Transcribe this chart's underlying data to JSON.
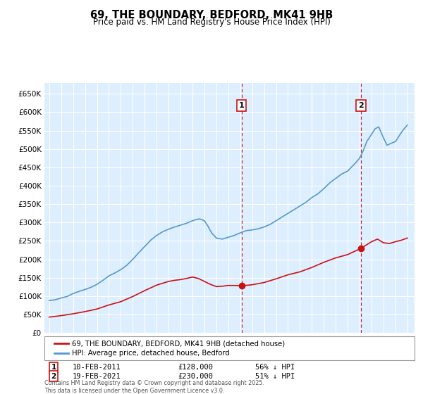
{
  "title": "69, THE BOUNDARY, BEDFORD, MK41 9HB",
  "subtitle": "Price paid vs. HM Land Registry's House Price Index (HPI)",
  "fig_bg_color": "#ffffff",
  "plot_bg_color": "#ddeeff",
  "grid_color": "#ffffff",
  "hpi_color": "#5599cc",
  "price_color": "#cc1111",
  "vline_color": "#cc1111",
  "ylim": [
    0,
    680000
  ],
  "yticks": [
    0,
    50000,
    100000,
    150000,
    200000,
    250000,
    300000,
    350000,
    400000,
    450000,
    500000,
    550000,
    600000,
    650000
  ],
  "legend_label_price": "69, THE BOUNDARY, BEDFORD, MK41 9HB (detached house)",
  "legend_label_hpi": "HPI: Average price, detached house, Bedford",
  "footnote": "Contains HM Land Registry data © Crown copyright and database right 2025.\nThis data is licensed under the Open Government Licence v3.0.",
  "transaction1_date": "10-FEB-2011",
  "transaction1_price": "£128,000",
  "transaction1_hpi": "56% ↓ HPI",
  "transaction1_year": 2011.12,
  "transaction1_price_val": 128000,
  "transaction2_date": "19-FEB-2021",
  "transaction2_price": "£230,000",
  "transaction2_hpi": "51% ↓ HPI",
  "transaction2_year": 2021.12,
  "transaction2_price_val": 230000,
  "hpi_x": [
    1995.0,
    1995.5,
    1996.0,
    1996.5,
    1997.0,
    1997.5,
    1998.0,
    1998.5,
    1999.0,
    1999.5,
    2000.0,
    2000.5,
    2001.0,
    2001.5,
    2002.0,
    2002.5,
    2003.0,
    2003.5,
    2004.0,
    2004.5,
    2005.0,
    2005.5,
    2006.0,
    2006.5,
    2007.0,
    2007.3,
    2007.6,
    2008.0,
    2008.3,
    2008.6,
    2009.0,
    2009.5,
    2010.0,
    2010.5,
    2011.0,
    2011.5,
    2012.0,
    2012.5,
    2013.0,
    2013.5,
    2014.0,
    2014.5,
    2015.0,
    2015.5,
    2016.0,
    2016.5,
    2017.0,
    2017.5,
    2018.0,
    2018.5,
    2019.0,
    2019.5,
    2020.0,
    2020.3,
    2020.6,
    2021.0,
    2021.3,
    2021.6,
    2022.0,
    2022.3,
    2022.6,
    2023.0,
    2023.3,
    2023.6,
    2024.0,
    2024.3,
    2024.6,
    2025.0
  ],
  "hpi_y": [
    88000,
    90000,
    95000,
    99000,
    107000,
    113000,
    118000,
    124000,
    132000,
    143000,
    155000,
    163000,
    172000,
    184000,
    200000,
    218000,
    235000,
    252000,
    265000,
    275000,
    282000,
    288000,
    293000,
    298000,
    305000,
    308000,
    310000,
    305000,
    290000,
    272000,
    258000,
    255000,
    260000,
    265000,
    272000,
    278000,
    280000,
    283000,
    288000,
    295000,
    305000,
    315000,
    325000,
    335000,
    345000,
    355000,
    368000,
    378000,
    392000,
    408000,
    420000,
    432000,
    440000,
    450000,
    460000,
    475000,
    495000,
    520000,
    540000,
    555000,
    560000,
    530000,
    510000,
    515000,
    520000,
    535000,
    550000,
    565000
  ],
  "price_x": [
    1995.0,
    1996.0,
    1997.0,
    1998.0,
    1999.0,
    2000.0,
    2001.0,
    2002.0,
    2003.0,
    2004.0,
    2005.0,
    2005.5,
    2006.0,
    2006.5,
    2007.0,
    2007.5,
    2008.0,
    2008.5,
    2009.0,
    2009.5,
    2010.0,
    2010.5,
    2011.12,
    2012.0,
    2013.0,
    2014.0,
    2015.0,
    2016.0,
    2017.0,
    2018.0,
    2019.0,
    2020.0,
    2021.12,
    2022.0,
    2022.5,
    2023.0,
    2023.5,
    2024.0,
    2024.5,
    2025.0
  ],
  "price_y": [
    43000,
    47000,
    52000,
    58000,
    65000,
    76000,
    85000,
    99000,
    115000,
    130000,
    140000,
    143000,
    145000,
    148000,
    152000,
    148000,
    140000,
    132000,
    126000,
    127000,
    129000,
    129000,
    128000,
    131000,
    137000,
    147000,
    158000,
    166000,
    178000,
    192000,
    204000,
    213000,
    230000,
    248000,
    255000,
    245000,
    243000,
    248000,
    252000,
    258000
  ]
}
